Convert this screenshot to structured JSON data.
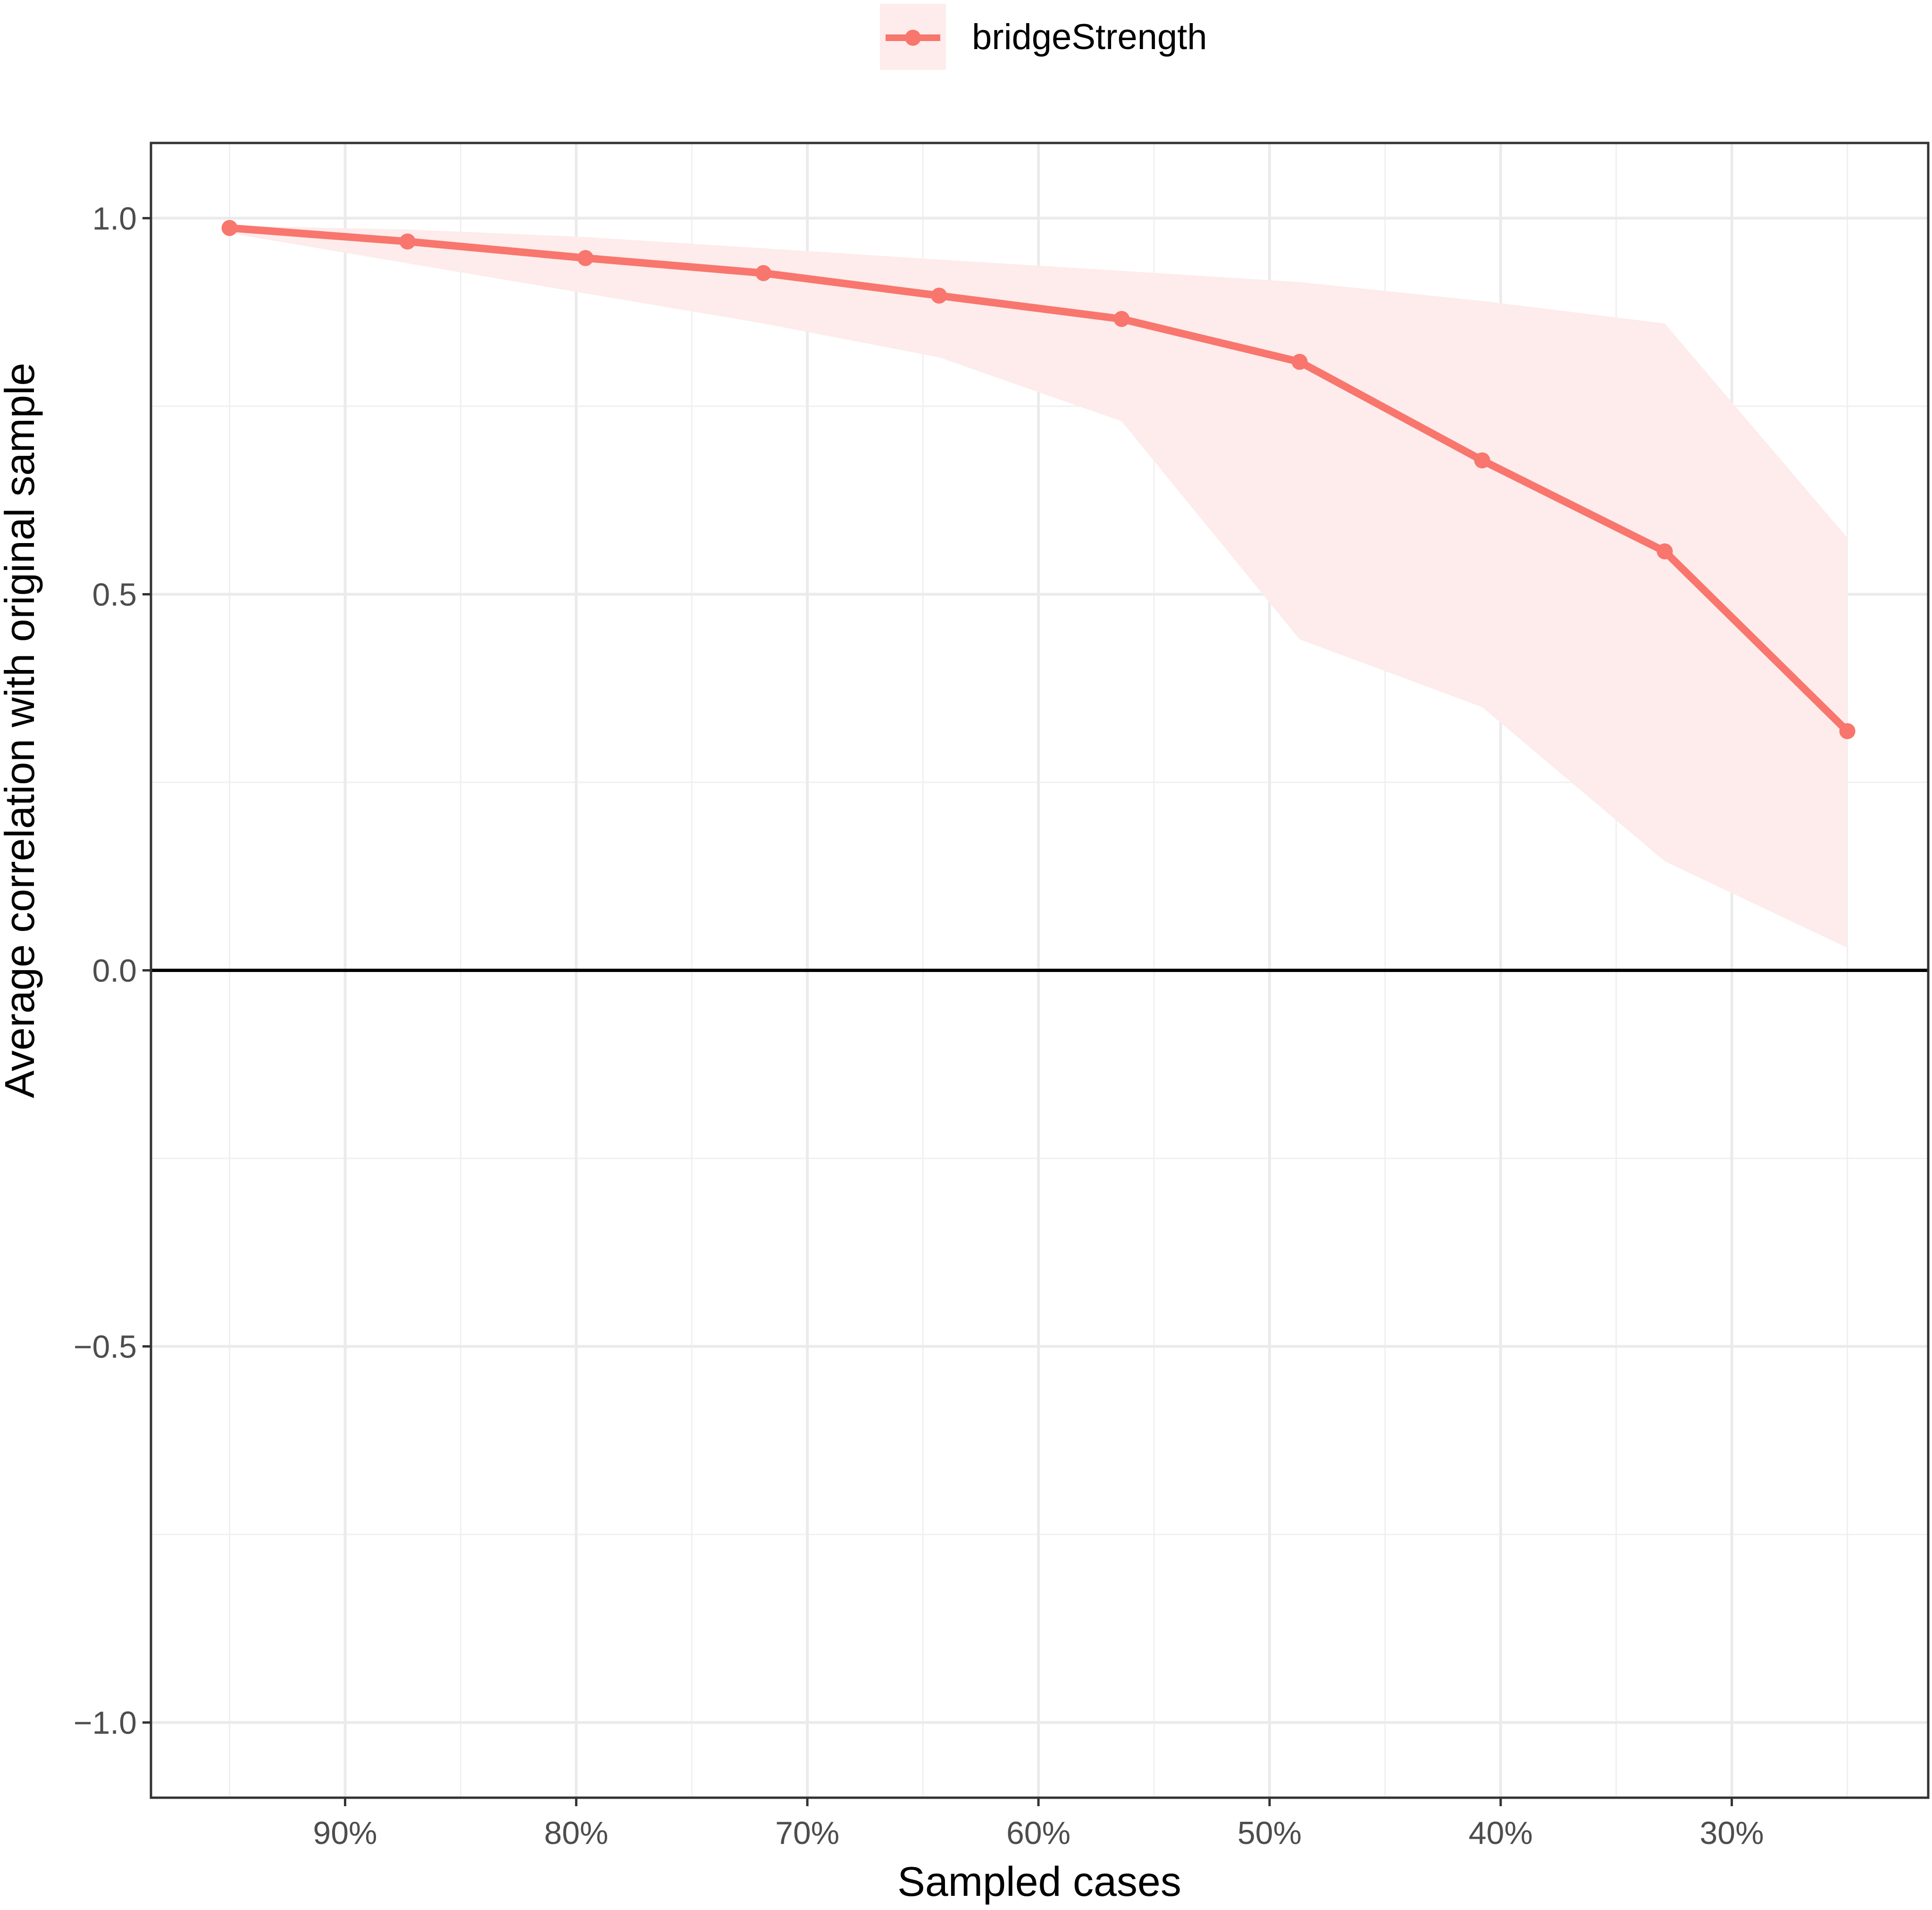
{
  "chart_data": {
    "type": "line",
    "xlabel": "Sampled cases",
    "ylabel": "Average correlation with original sample",
    "x_ticks": [
      {
        "value": 90,
        "label": "90%"
      },
      {
        "value": 80,
        "label": "80%"
      },
      {
        "value": 70,
        "label": "70%"
      },
      {
        "value": 60,
        "label": "60%"
      },
      {
        "value": 50,
        "label": "50%"
      },
      {
        "value": 40,
        "label": "40%"
      },
      {
        "value": 30,
        "label": "30%"
      }
    ],
    "x_reversed": true,
    "xlim": [
      98.4,
      21.5
    ],
    "y_ticks": [
      {
        "value": 1.0,
        "label": "1.0"
      },
      {
        "value": 0.5,
        "label": "0.5"
      },
      {
        "value": 0.0,
        "label": "0.0"
      },
      {
        "value": -0.5,
        "label": "−0.5"
      },
      {
        "value": -1.0,
        "label": "−1.0"
      }
    ],
    "ylim": [
      -1.1,
      1.1
    ],
    "grid": true,
    "zero_line": true,
    "legend_position": "top",
    "series": [
      {
        "name": "bridgeStrength",
        "color": "#F8766D",
        "band_color": "#FDECEB",
        "x": [
          95,
          87.3,
          79.6,
          71.9,
          64.3,
          56.4,
          48.7,
          40.8,
          32.9,
          25.0
        ],
        "values": [
          0.987,
          0.969,
          0.947,
          0.927,
          0.897,
          0.866,
          0.809,
          0.678,
          0.557,
          0.318
        ],
        "lower": [
          0.98,
          0.94,
          0.9,
          0.86,
          0.815,
          0.73,
          0.44,
          0.35,
          0.145,
          0.03
        ],
        "upper": [
          0.99,
          0.985,
          0.975,
          0.96,
          0.945,
          0.93,
          0.915,
          0.89,
          0.86,
          0.575
        ]
      }
    ]
  }
}
